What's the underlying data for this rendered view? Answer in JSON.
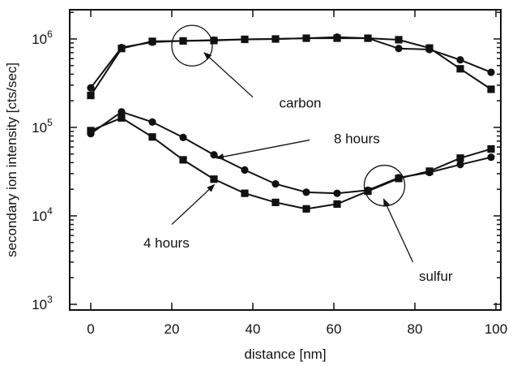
{
  "chart_data": {
    "type": "scatter",
    "xlabel": "distance [nm]",
    "ylabel": "secondary ion intensity [cts/sec]",
    "xlim": [
      -5,
      100
    ],
    "ylim": [
      1000,
      2000000
    ],
    "yscale": "log",
    "grid": false,
    "x_ticks": [
      {
        "value": 0,
        "label": "0"
      },
      {
        "value": 20,
        "label": "20"
      },
      {
        "value": 40,
        "label": "40"
      },
      {
        "value": 60,
        "label": "60"
      },
      {
        "value": 80,
        "label": "80"
      },
      {
        "value": 100,
        "label": "100"
      }
    ],
    "y_ticks": [
      {
        "value": 1000,
        "base": "10",
        "exp": "3"
      },
      {
        "value": 10000,
        "base": "10",
        "exp": "4"
      },
      {
        "value": 100000,
        "base": "10",
        "exp": "5"
      },
      {
        "value": 1000000,
        "base": "10",
        "exp": "6"
      }
    ],
    "series": [
      {
        "marker": "circle",
        "points": [
          [
            0,
            280000
          ],
          [
            7.6,
            800000
          ],
          [
            15.2,
            920000
          ],
          [
            22.8,
            950000
          ],
          [
            30.4,
            970000
          ],
          [
            38,
            990000
          ],
          [
            45.6,
            1000000
          ],
          [
            53.2,
            1020000
          ],
          [
            60.8,
            1050000
          ],
          [
            68.4,
            1020000
          ],
          [
            76,
            780000
          ],
          [
            83.6,
            760000
          ],
          [
            91.2,
            580000
          ],
          [
            98.8,
            420000
          ]
        ]
      },
      {
        "marker": "square",
        "points": [
          [
            0,
            230000
          ],
          [
            7.6,
            780000
          ],
          [
            15.2,
            940000
          ],
          [
            22.8,
            950000
          ],
          [
            30.4,
            960000
          ],
          [
            38,
            990000
          ],
          [
            45.6,
            1000000
          ],
          [
            53.2,
            1020000
          ],
          [
            60.8,
            1020000
          ],
          [
            68.4,
            1020000
          ],
          [
            76,
            980000
          ],
          [
            83.6,
            790000
          ],
          [
            91.2,
            460000
          ],
          [
            98.8,
            270000
          ]
        ]
      },
      {
        "marker": "circle",
        "points": [
          [
            0,
            85000
          ],
          [
            7.6,
            150000
          ],
          [
            15.2,
            115000
          ],
          [
            22.8,
            77000
          ],
          [
            30.4,
            49000
          ],
          [
            38,
            33000
          ],
          [
            45.6,
            23000
          ],
          [
            53.2,
            18500
          ],
          [
            60.8,
            18000
          ],
          [
            68.4,
            19500
          ],
          [
            76,
            27000
          ],
          [
            83.6,
            31000
          ],
          [
            91.2,
            38000
          ],
          [
            98.8,
            46000
          ]
        ]
      },
      {
        "marker": "square",
        "points": [
          [
            0,
            92000
          ],
          [
            7.6,
            128000
          ],
          [
            15.2,
            78000
          ],
          [
            22.8,
            43000
          ],
          [
            30.4,
            26000
          ],
          [
            38,
            18000
          ],
          [
            45.6,
            14200
          ],
          [
            53.2,
            12000
          ],
          [
            60.8,
            13600
          ],
          [
            68.4,
            19000
          ],
          [
            76,
            26500
          ],
          [
            83.6,
            32000
          ],
          [
            91.2,
            45000
          ],
          [
            98.8,
            57000
          ]
        ]
      }
    ],
    "annotations": [
      {
        "text": "carbon",
        "text_at": [
          46.5,
          190000
        ],
        "arrow_from": [
          40,
          220000
        ],
        "arrow_to": [
          28,
          700000
        ],
        "circle_at": [
          25,
          840000
        ]
      },
      {
        "text": "8 hours",
        "text_at": [
          60,
          75000
        ],
        "arrow_from": [
          54,
          72000
        ],
        "arrow_to": [
          31,
          45000
        ]
      },
      {
        "text": "4 hours",
        "text_at": [
          13,
          5000
        ],
        "arrow_from": [
          20,
          8000
        ],
        "arrow_to": [
          30.5,
          22500
        ]
      },
      {
        "text": "sulfur",
        "text_at": [
          81,
          2100
        ],
        "arrow_from": [
          79.5,
          3000
        ],
        "arrow_to": [
          72.3,
          15500
        ],
        "circle_at": [
          72.5,
          22000
        ]
      }
    ]
  }
}
